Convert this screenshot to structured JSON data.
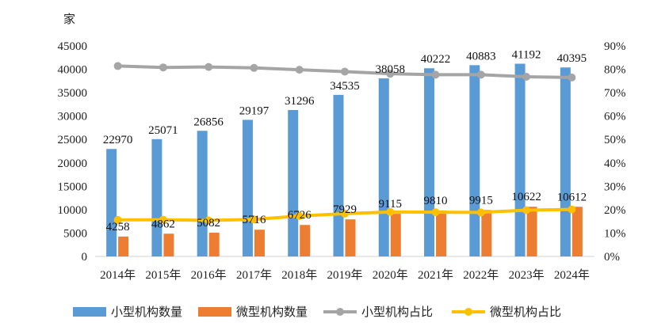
{
  "chart_data": {
    "type": "bar",
    "y_unit": "家",
    "categories": [
      "2014年",
      "2015年",
      "2016年",
      "2017年",
      "2018年",
      "2019年",
      "2020年",
      "2021年",
      "2022年",
      "2023年",
      "2024年"
    ],
    "series": [
      {
        "name": "小型机构数量",
        "type": "bar",
        "axis": "left",
        "color": "#5B9BD5",
        "values": [
          22970,
          25071,
          26856,
          29197,
          31296,
          34535,
          38058,
          40222,
          40883,
          41192,
          40395
        ]
      },
      {
        "name": "微型机构数量",
        "type": "bar",
        "axis": "left",
        "color": "#ED7D31",
        "values": [
          4258,
          4862,
          5082,
          5716,
          6726,
          7929,
          9115,
          9810,
          9915,
          10622,
          10612
        ]
      },
      {
        "name": "小型机构占比",
        "type": "line",
        "axis": "right",
        "color": "#A5A5A5",
        "values": [
          81.4,
          80.8,
          81.0,
          80.6,
          79.8,
          79.0,
          78.1,
          77.7,
          77.7,
          76.8,
          76.5
        ]
      },
      {
        "name": "微型机构占比",
        "type": "line",
        "axis": "right",
        "color": "#FFC000",
        "values": [
          15.6,
          15.7,
          15.4,
          15.8,
          17.3,
          18.3,
          19.0,
          18.9,
          18.8,
          19.8,
          20.1
        ]
      }
    ],
    "y_left": {
      "min": 0,
      "max": 45000,
      "ticks": [
        "0",
        "5000",
        "10000",
        "15000",
        "20000",
        "25000",
        "30000",
        "35000",
        "40000",
        "45000"
      ]
    },
    "y_right": {
      "min": 0,
      "max": 90,
      "ticks": [
        "0%",
        "10%",
        "20%",
        "30%",
        "40%",
        "50%",
        "60%",
        "70%",
        "80%",
        "90%"
      ]
    },
    "grid": false,
    "legend": "bottom"
  }
}
